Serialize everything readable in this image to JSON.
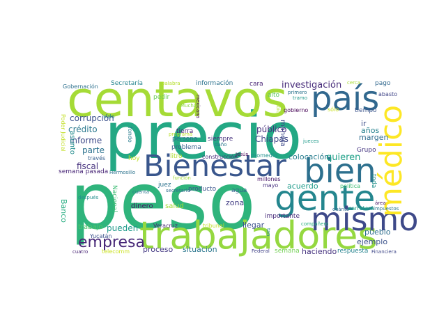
{
  "words": [
    {
      "text": "peso",
      "color": "#2fb47c"
    },
    {
      "text": "precio",
      "color": "#23a884"
    },
    {
      "text": "centavos",
      "color": "#a5db36"
    },
    {
      "text": "trabajadores",
      "color": "#95d840"
    },
    {
      "text": "Bienestar",
      "color": "#39568c"
    },
    {
      "text": "bien",
      "color": "#2d708e"
    },
    {
      "text": "gente",
      "color": "#24868e"
    },
    {
      "text": "mismo",
      "color": "#3e4989"
    },
    {
      "text": "país",
      "color": "#31688e"
    },
    {
      "text": "médico",
      "color": "#fde725"
    },
    {
      "text": "empresa",
      "color": "#482878"
    },
    {
      "text": "investigación",
      "color": "#472c7a"
    },
    {
      "text": "corrupción",
      "color": "#3b518b"
    },
    {
      "text": "crédito",
      "color": "#2a788e"
    },
    {
      "text": "informe",
      "color": "#3e4a89"
    },
    {
      "text": "parte",
      "color": "#2c728e"
    },
    {
      "text": "fiscal",
      "color": "#46327e"
    },
    {
      "text": "semana pasada",
      "color": "#482677"
    },
    {
      "text": "asunto",
      "color": "#228c8d"
    },
    {
      "text": "Poder Judicial",
      "color": "#c2df23"
    },
    {
      "text": "Banco",
      "color": "#27ad81"
    },
    {
      "text": "trabajo",
      "color": "#52c569"
    },
    {
      "text": "pueden",
      "color": "#1f9a8a"
    },
    {
      "text": "proceso",
      "color": "#443983"
    },
    {
      "text": "situación",
      "color": "#2a768e"
    },
    {
      "text": "público",
      "color": "#46307e"
    },
    {
      "text": "Chiapas",
      "color": "#3f4788"
    },
    {
      "text": "colocación",
      "color": "#287d8e"
    },
    {
      "text": "quieren",
      "color": "#1fa088"
    },
    {
      "text": "ejemplo",
      "color": "#3b528b"
    },
    {
      "text": "pueblo",
      "color": "#2e6f8e"
    },
    {
      "text": "haciendo",
      "color": "#46337f"
    },
    {
      "text": "semana",
      "color": "#74d055"
    },
    {
      "text": "respuesta",
      "color": "#25838e"
    },
    {
      "text": "llegar",
      "color": "#3c508b"
    },
    {
      "text": "importante",
      "color": "#472a7a"
    },
    {
      "text": "zona",
      "color": "#433e85"
    },
    {
      "text": "agua",
      "color": "#33638d"
    },
    {
      "text": "producto",
      "color": "#3a548c"
    },
    {
      "text": "salud",
      "color": "#a2da37"
    },
    {
      "text": "dinero",
      "color": "#471365"
    },
    {
      "text": "acuerdo",
      "color": "#1e9b8a"
    },
    {
      "text": "margen",
      "color": "#2f6c8e"
    },
    {
      "text": "años",
      "color": "#26818e"
    },
    {
      "text": "ir",
      "color": "#3d4e8a"
    },
    {
      "text": "Grupo",
      "color": "#453581"
    },
    {
      "text": "toda",
      "color": "#21918c"
    },
    {
      "text": "tiempo",
      "color": "#3a538b"
    },
    {
      "text": "sólo",
      "color": "#c8e020"
    },
    {
      "text": "abasto",
      "color": "#404588"
    },
    {
      "text": "pago",
      "color": "#31688e"
    },
    {
      "text": "cerca",
      "color": "#a8db34"
    },
    {
      "text": "información",
      "color": "#2c728e"
    },
    {
      "text": "Secretaría",
      "color": "#25848e"
    },
    {
      "text": "Gobernación",
      "color": "#2d708e"
    },
    {
      "text": "palabra",
      "color": "#b5de2b"
    },
    {
      "text": "cara",
      "color": "#482374"
    },
    {
      "text": "pedir",
      "color": "#6ccd5a"
    },
    {
      "text": "Muchas",
      "color": "#8fd744"
    },
    {
      "text": "mexicana",
      "color": "#46085c"
    },
    {
      "text": "alto",
      "color": "#5ec962"
    },
    {
      "text": "primero",
      "color": "#2b748e"
    },
    {
      "text": "tramo",
      "color": "#1f998a"
    },
    {
      "text": "gobierno",
      "color": "#440154"
    },
    {
      "text": "ubicó",
      "color": "#b0dd2f"
    },
    {
      "text": "manera",
      "color": "#3e4a89"
    },
    {
      "text": "jueces",
      "color": "#1f9a8a"
    },
    {
      "text": "sido",
      "color": "#25858e"
    },
    {
      "text": "través",
      "color": "#355f8d"
    },
    {
      "text": "hoy",
      "color": "#bddf26"
    },
    {
      "text": "fondo",
      "color": "#287c8e"
    },
    {
      "text": "tierra",
      "color": "#482173"
    },
    {
      "text": "persona",
      "color": "#2d718e"
    },
    {
      "text": "siempre",
      "color": "#46327e"
    },
    {
      "text": "problema",
      "color": "#355e8d"
    },
    {
      "text": "Jesús",
      "color": "#440154"
    },
    {
      "text": "promedio",
      "color": "#20928c"
    },
    {
      "text": "construcción",
      "color": "#482979"
    },
    {
      "text": "litro",
      "color": "#addc30"
    },
    {
      "text": "Hermosillo",
      "color": "#2c738e"
    },
    {
      "text": "función",
      "color": "#a2da37"
    },
    {
      "text": "juez",
      "color": "#2c728e"
    },
    {
      "text": "millones",
      "color": "#481668"
    },
    {
      "text": "mayo",
      "color": "#46307e"
    },
    {
      "text": "Nacional",
      "color": "#3ebc74"
    },
    {
      "text": "después",
      "color": "#218f8d"
    },
    {
      "text": "política",
      "color": "#3dbc74"
    },
    {
      "text": "área",
      "color": "#471164"
    },
    {
      "text": "cuánto",
      "color": "#31688e"
    },
    {
      "text": "carretera",
      "color": "#1f9f88"
    },
    {
      "text": "impuestos",
      "color": "#2a768e"
    },
    {
      "text": "compañero",
      "color": "#29af7f"
    },
    {
      "text": "tribunal",
      "color": "#c0df25"
    },
    {
      "text": "tan",
      "color": "#25848e"
    },
    {
      "text": "Veracruz",
      "color": "#482475"
    },
    {
      "text": "Yucatán",
      "color": "#3b518b"
    },
    {
      "text": "telecomm",
      "color": "#cae11f"
    },
    {
      "text": "cuatro",
      "color": "#482475"
    },
    {
      "text": "Federal",
      "color": "#414287"
    },
    {
      "text": "Financiera",
      "color": "#3f4889"
    },
    {
      "text": "programa",
      "color": "#bade28"
    },
    {
      "text": "daño",
      "color": "#2a788e"
    },
    {
      "text": "cuenta",
      "color": "#2b758e"
    },
    {
      "text": "secretario",
      "color": "#2f6b8e"
    }
  ]
}
